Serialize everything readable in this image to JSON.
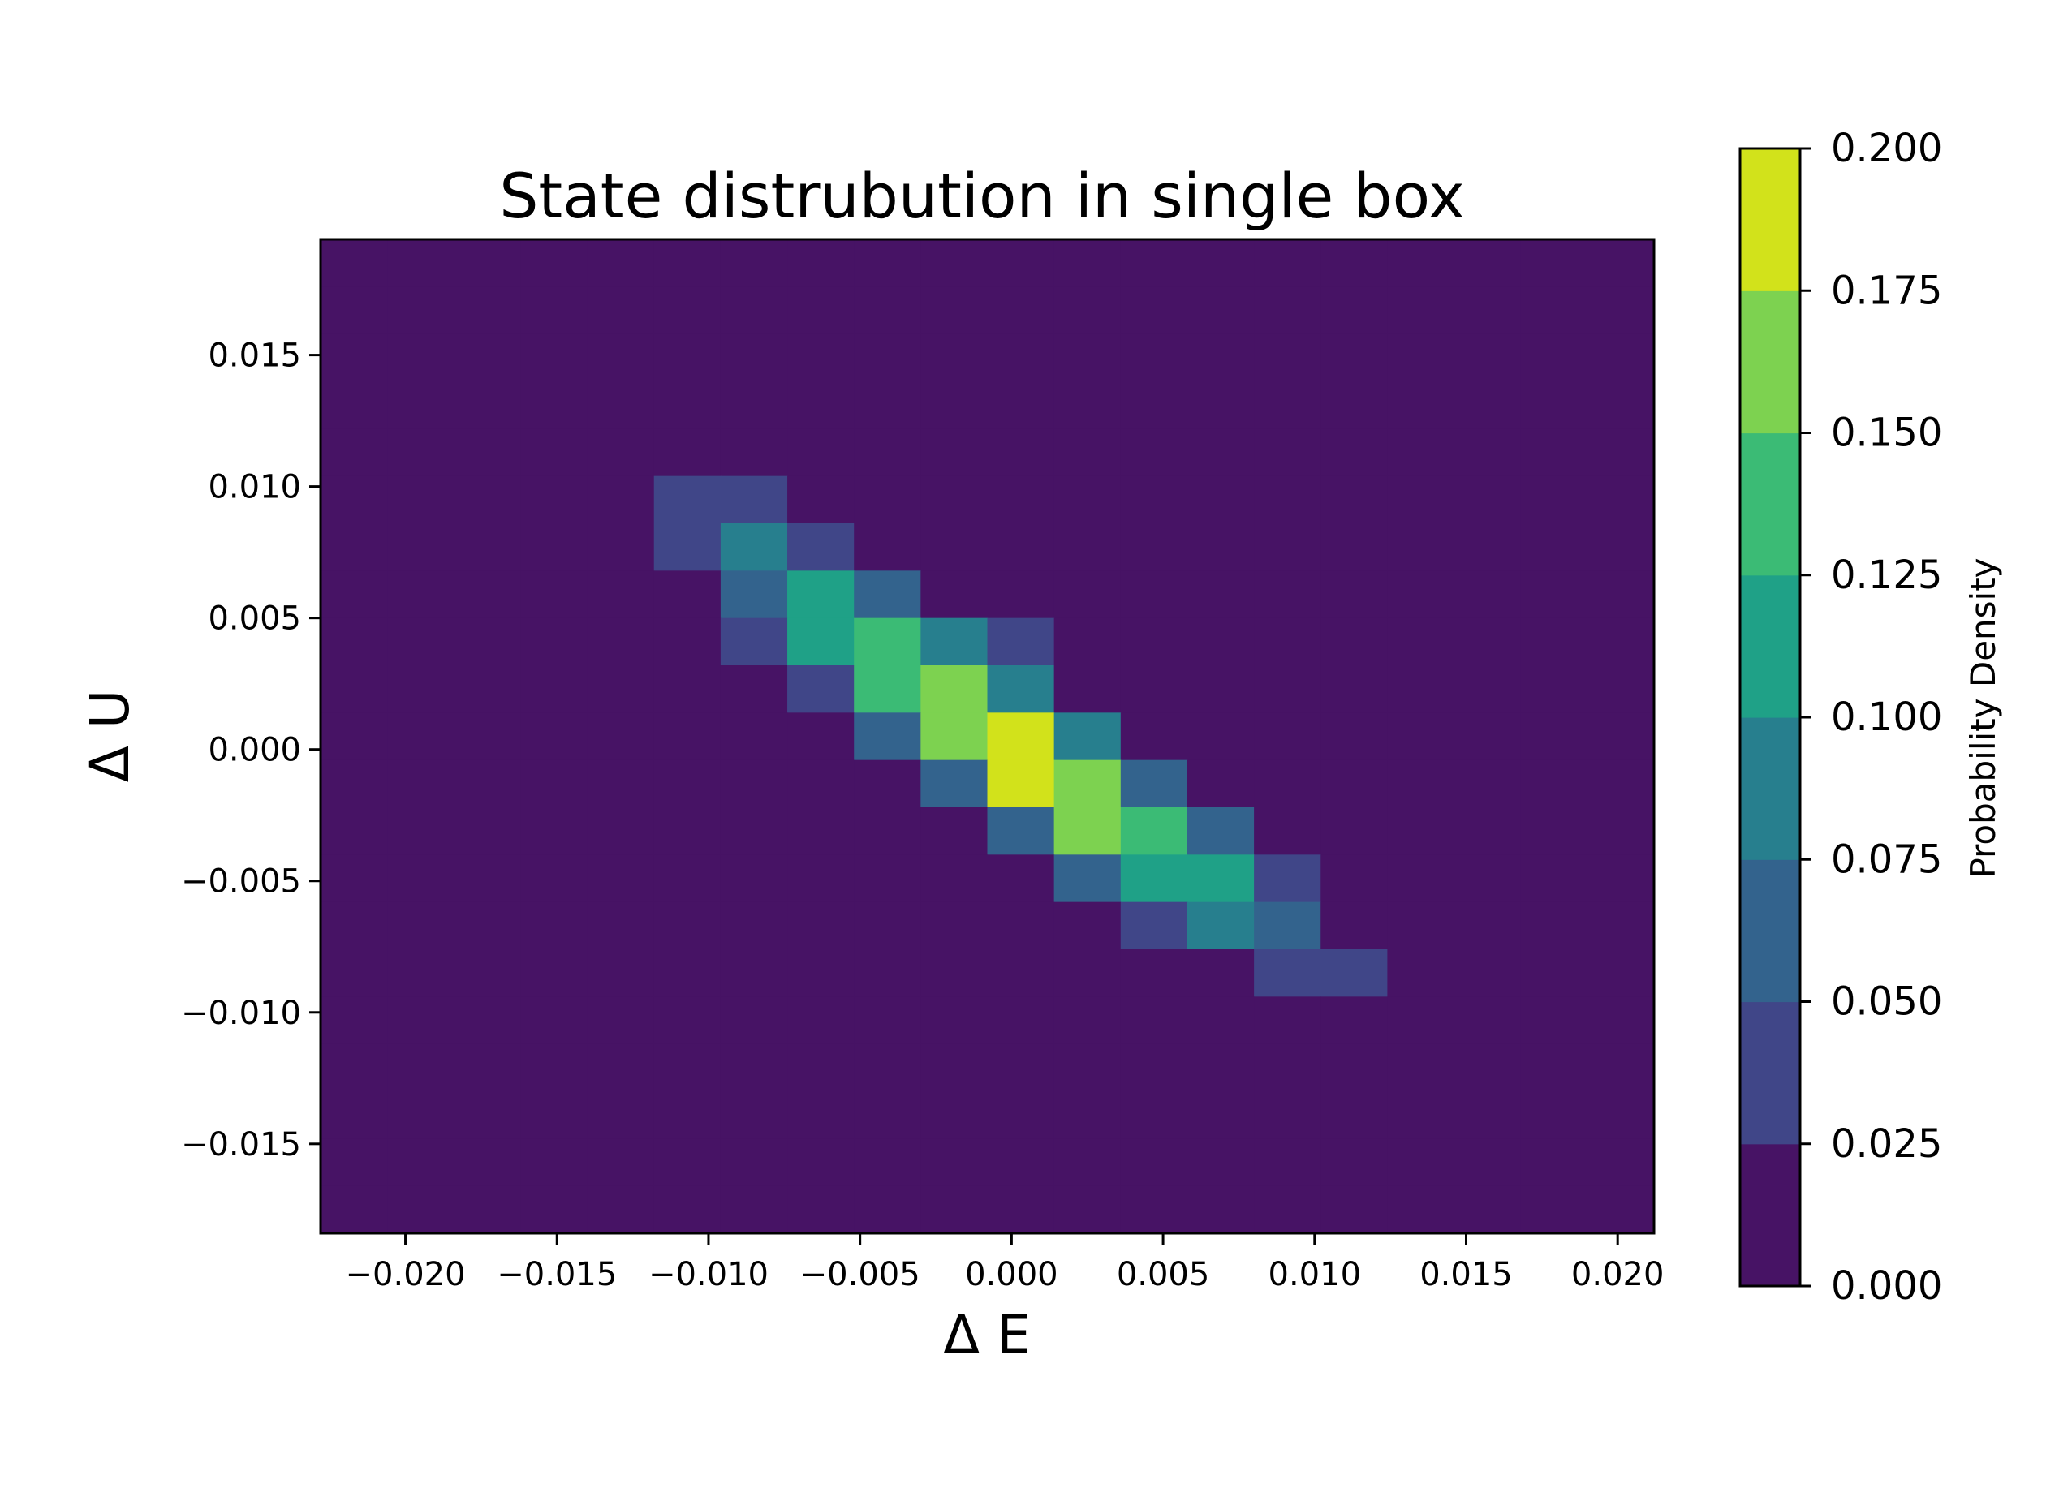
{
  "chart_data": {
    "type": "heatmap",
    "title": "State distrubution in single box",
    "xlabel": "Δ E",
    "ylabel": "Δ U",
    "x_bin_edges": [
      -0.0228,
      -0.0206,
      -0.0184,
      -0.0162,
      -0.014,
      -0.0118,
      -0.0096,
      -0.0074,
      -0.0052,
      -0.003,
      -0.0008,
      0.0014,
      0.0036,
      0.0058,
      0.008,
      0.0102,
      0.0124,
      0.0146,
      0.0168,
      0.019,
      0.0212
    ],
    "y_bin_edges": [
      -0.0184,
      -0.0166,
      -0.0148,
      -0.013,
      -0.0112,
      -0.0094,
      -0.0076,
      -0.0058,
      -0.004,
      -0.0022,
      -0.0004,
      0.0014,
      0.0032,
      0.005,
      0.0068,
      0.0086,
      0.0104,
      0.0122,
      0.014,
      0.0158,
      0.0176,
      0.0194
    ],
    "xlim": [
      -0.0228,
      0.0212
    ],
    "ylim": [
      -0.0184,
      0.0194
    ],
    "xticks": [
      "−0.020",
      "−0.015",
      "−0.010",
      "−0.005",
      "0.000",
      "0.005",
      "0.010",
      "0.015",
      "0.020"
    ],
    "xtick_values": [
      -0.02,
      -0.015,
      -0.01,
      -0.005,
      0.0,
      0.005,
      0.01,
      0.015,
      0.02
    ],
    "yticks": [
      "0.015",
      "0.010",
      "0.005",
      "0.000",
      "−0.005",
      "−0.010",
      "−0.015"
    ],
    "ytick_values": [
      0.015,
      0.01,
      0.005,
      0.0,
      -0.005,
      -0.01,
      -0.015
    ],
    "grid": false,
    "values": [
      [
        0.004,
        0.0,
        0.0,
        0.0,
        0.0,
        0.0,
        0.0,
        0.0,
        0.0,
        0.0,
        0.0,
        0.0,
        0.0,
        0.0,
        0.0,
        0.0,
        0.0,
        0.0,
        0.0,
        0.0
      ],
      [
        0.0,
        0.002,
        0.002,
        0.0,
        0.0,
        0.0,
        0.0,
        0.0,
        0.0,
        0.0,
        0.0,
        0.0,
        0.0,
        0.0,
        0.0,
        0.0,
        0.0,
        0.0,
        0.0,
        0.0
      ],
      [
        0.0,
        0.004,
        0.004,
        0.006,
        0.004,
        0.0,
        0.0,
        0.0,
        0.0,
        0.0,
        0.0,
        0.0,
        0.0,
        0.0,
        0.0,
        0.0,
        0.0,
        0.0,
        0.0,
        0.0
      ],
      [
        0.0,
        0.0,
        0.01,
        0.014,
        0.008,
        0.004,
        0.002,
        0.0,
        0.0,
        0.0,
        0.0,
        0.0,
        0.0,
        0.0,
        0.0,
        0.0,
        0.0,
        0.0,
        0.0,
        0.0
      ],
      [
        0.0,
        0.0,
        0.008,
        0.012,
        0.02,
        0.02,
        0.012,
        0.006,
        0.0,
        0.0,
        0.0,
        0.0,
        0.0,
        0.0,
        0.0,
        0.0,
        0.0,
        0.0,
        0.0,
        0.0
      ],
      [
        0.0,
        0.0,
        0.0,
        0.004,
        0.024,
        0.04,
        0.026,
        0.014,
        0.004,
        0.0,
        0.0,
        0.0,
        0.0,
        0.0,
        0.0,
        0.0,
        0.0,
        0.0,
        0.0,
        0.0
      ],
      [
        0.0,
        0.0,
        0.0,
        0.002,
        0.01,
        0.032,
        0.086,
        0.046,
        0.02,
        0.006,
        0.0,
        0.0,
        0.0,
        0.0,
        0.0,
        0.0,
        0.0,
        0.0,
        0.0,
        0.0
      ],
      [
        0.0,
        0.0,
        0.0,
        0.0,
        0.004,
        0.02,
        0.066,
        0.116,
        0.066,
        0.02,
        0.006,
        0.0,
        0.0,
        0.0,
        0.0,
        0.0,
        0.0,
        0.0,
        0.0,
        0.0
      ],
      [
        0.0,
        0.0,
        0.0,
        0.0,
        0.0,
        0.008,
        0.028,
        0.108,
        0.14,
        0.078,
        0.026,
        0.004,
        0.0,
        0.0,
        0.0,
        0.0,
        0.0,
        0.0,
        0.0,
        0.0
      ],
      [
        0.0,
        0.0,
        0.0,
        0.0,
        0.0,
        0.0,
        0.006,
        0.04,
        0.132,
        0.168,
        0.092,
        0.016,
        0.004,
        0.002,
        0.0,
        0.0,
        0.0,
        0.0,
        0.0,
        0.0
      ],
      [
        0.0,
        0.0,
        0.0,
        0.0,
        0.0,
        0.0,
        0.0,
        0.01,
        0.054,
        0.16,
        0.198,
        0.08,
        0.014,
        0.004,
        0.002,
        0.0,
        0.0,
        0.0,
        0.0,
        0.0
      ],
      [
        0.0,
        0.0,
        0.0,
        0.0,
        0.0,
        0.0,
        0.0,
        0.0,
        0.006,
        0.074,
        0.19,
        0.17,
        0.074,
        0.016,
        0.004,
        0.0,
        0.0,
        0.0,
        0.0,
        0.0
      ],
      [
        0.0,
        0.0,
        0.0,
        0.0,
        0.0,
        0.0,
        0.0,
        0.0,
        0.0,
        0.006,
        0.05,
        0.158,
        0.14,
        0.056,
        0.018,
        0.004,
        0.0,
        0.0,
        0.0,
        0.0
      ],
      [
        0.0,
        0.0,
        0.0,
        0.0,
        0.0,
        0.0,
        0.0,
        0.0,
        0.0,
        0.0,
        0.008,
        0.064,
        0.118,
        0.11,
        0.034,
        0.01,
        0.002,
        0.0,
        0.0,
        0.0
      ],
      [
        0.0,
        0.0,
        0.0,
        0.0,
        0.0,
        0.0,
        0.0,
        0.0,
        0.0,
        0.0,
        0.0,
        0.006,
        0.03,
        0.082,
        0.062,
        0.016,
        0.008,
        0.0,
        0.0,
        0.0
      ],
      [
        0.0,
        0.0,
        0.0,
        0.0,
        0.0,
        0.0,
        0.0,
        0.0,
        0.0,
        0.0,
        0.0,
        0.0,
        0.004,
        0.016,
        0.04,
        0.026,
        0.012,
        0.0,
        0.0,
        0.0
      ],
      [
        0.0,
        0.0,
        0.0,
        0.0,
        0.0,
        0.0,
        0.0,
        0.0,
        0.0,
        0.0,
        0.0,
        0.0,
        0.0,
        0.002,
        0.01,
        0.008,
        0.008,
        0.002,
        0.0,
        0.0
      ],
      [
        0.0,
        0.0,
        0.0,
        0.0,
        0.0,
        0.0,
        0.0,
        0.0,
        0.0,
        0.0,
        0.0,
        0.0,
        0.0,
        0.0,
        0.0,
        0.002,
        0.004,
        0.002,
        0.0,
        0.0
      ],
      [
        0.0,
        0.0,
        0.0,
        0.0,
        0.0,
        0.0,
        0.0,
        0.0,
        0.0,
        0.0,
        0.0,
        0.0,
        0.0,
        0.0,
        0.0,
        0.0,
        0.0,
        0.002,
        0.0,
        0.0
      ],
      [
        0.0,
        0.0,
        0.0,
        0.0,
        0.0,
        0.0,
        0.0,
        0.0,
        0.0,
        0.0,
        0.0,
        0.0,
        0.0,
        0.0,
        0.0,
        0.0,
        0.0,
        0.0,
        0.002,
        0.0
      ],
      [
        0.0,
        0.0,
        0.0,
        0.0,
        0.0,
        0.0,
        0.0,
        0.0,
        0.0,
        0.0,
        0.0,
        0.0,
        0.0,
        0.0,
        0.0,
        0.0,
        0.0,
        0.0,
        0.0,
        0.0
      ]
    ],
    "colorbar": {
      "label": "Probability Density",
      "vmin": 0.0,
      "vmax": 0.2,
      "ticks": [
        "0.000",
        "0.025",
        "0.050",
        "0.075",
        "0.100",
        "0.125",
        "0.150",
        "0.175",
        "0.200"
      ],
      "tick_values": [
        0.0,
        0.025,
        0.05,
        0.075,
        0.1,
        0.125,
        0.15,
        0.175,
        0.2
      ],
      "colors": [
        "#471365",
        "#404688",
        "#33638d",
        "#277f8e",
        "#1fa187",
        "#3bbb75",
        "#7dd250",
        "#d2e21b"
      ],
      "colormap": "viridis (8 discrete levels)"
    }
  }
}
